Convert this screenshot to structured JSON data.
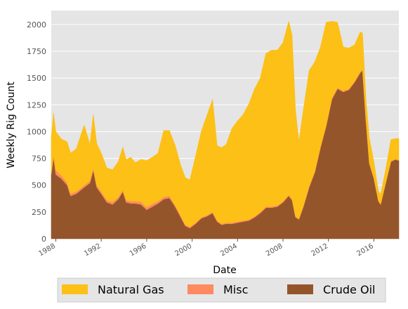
{
  "chart_data": {
    "type": "area",
    "stacked": true,
    "xlabel": "Date",
    "ylabel": "Weekly Rig Count",
    "xlim": [
      1987.6,
      2018.2
    ],
    "ylim": [
      0,
      2130
    ],
    "x_ticks": [
      {
        "value": 1988,
        "label": "1988"
      },
      {
        "value": 1992,
        "label": "1992"
      },
      {
        "value": 1996,
        "label": "1996"
      },
      {
        "value": 2000,
        "label": "2000"
      },
      {
        "value": 2004,
        "label": "2004"
      },
      {
        "value": 2008,
        "label": "2008"
      },
      {
        "value": 2012,
        "label": "2012"
      },
      {
        "value": 2016,
        "label": "2016"
      }
    ],
    "y_ticks": [
      {
        "value": 0,
        "label": "0"
      },
      {
        "value": 250,
        "label": "250"
      },
      {
        "value": 500,
        "label": "500"
      },
      {
        "value": 750,
        "label": "750"
      },
      {
        "value": 1000,
        "label": "1000"
      },
      {
        "value": 1250,
        "label": "1250"
      },
      {
        "value": 1500,
        "label": "1500"
      },
      {
        "value": 1750,
        "label": "1750"
      },
      {
        "value": 2000,
        "label": "2000"
      }
    ],
    "grid": true,
    "background": "#e5e5e5",
    "legend_position": "bottom",
    "series": [
      {
        "name": "Crude Oil",
        "color": "#95552b",
        "points": [
          [
            1987.6,
            600
          ],
          [
            1987.8,
            760
          ],
          [
            1988.0,
            600
          ],
          [
            1988.5,
            560
          ],
          [
            1989.0,
            500
          ],
          [
            1989.3,
            400
          ],
          [
            1989.8,
            420
          ],
          [
            1990.5,
            480
          ],
          [
            1991.0,
            520
          ],
          [
            1991.3,
            640
          ],
          [
            1991.6,
            480
          ],
          [
            1992.0,
            420
          ],
          [
            1992.5,
            340
          ],
          [
            1993.0,
            320
          ],
          [
            1993.5,
            370
          ],
          [
            1993.9,
            440
          ],
          [
            1994.2,
            340
          ],
          [
            1994.6,
            330
          ],
          [
            1995.0,
            330
          ],
          [
            1995.5,
            320
          ],
          [
            1996.0,
            270
          ],
          [
            1996.5,
            300
          ],
          [
            1997.0,
            330
          ],
          [
            1997.5,
            370
          ],
          [
            1998.0,
            380
          ],
          [
            1998.5,
            300
          ],
          [
            1999.0,
            200
          ],
          [
            1999.4,
            120
          ],
          [
            1999.8,
            100
          ],
          [
            2000.3,
            140
          ],
          [
            2000.8,
            190
          ],
          [
            2001.3,
            210
          ],
          [
            2001.8,
            240
          ],
          [
            2002.2,
            160
          ],
          [
            2002.6,
            130
          ],
          [
            2003.0,
            140
          ],
          [
            2003.5,
            140
          ],
          [
            2004.0,
            150
          ],
          [
            2004.5,
            160
          ],
          [
            2005.0,
            170
          ],
          [
            2005.5,
            200
          ],
          [
            2006.0,
            240
          ],
          [
            2006.5,
            290
          ],
          [
            2007.0,
            290
          ],
          [
            2007.5,
            300
          ],
          [
            2008.0,
            340
          ],
          [
            2008.5,
            400
          ],
          [
            2008.8,
            360
          ],
          [
            2009.1,
            200
          ],
          [
            2009.4,
            180
          ],
          [
            2009.8,
            300
          ],
          [
            2010.3,
            480
          ],
          [
            2010.8,
            620
          ],
          [
            2011.3,
            850
          ],
          [
            2011.8,
            1050
          ],
          [
            2012.3,
            1300
          ],
          [
            2012.8,
            1400
          ],
          [
            2013.3,
            1370
          ],
          [
            2013.8,
            1390
          ],
          [
            2014.3,
            1460
          ],
          [
            2014.8,
            1550
          ],
          [
            2015.0,
            1570
          ],
          [
            2015.3,
            1100
          ],
          [
            2015.6,
            700
          ],
          [
            2016.0,
            560
          ],
          [
            2016.4,
            350
          ],
          [
            2016.6,
            320
          ],
          [
            2017.0,
            500
          ],
          [
            2017.5,
            720
          ],
          [
            2017.9,
            740
          ],
          [
            2018.2,
            730
          ]
        ]
      },
      {
        "name": "Misc",
        "color": "#fe8a60",
        "points": [
          [
            1987.6,
            25
          ],
          [
            1987.8,
            25
          ],
          [
            1988.0,
            40
          ],
          [
            1988.5,
            30
          ],
          [
            1989.0,
            25
          ],
          [
            1989.3,
            20
          ],
          [
            1989.8,
            20
          ],
          [
            1990.5,
            20
          ],
          [
            1991.0,
            20
          ],
          [
            1991.3,
            20
          ],
          [
            1991.6,
            20
          ],
          [
            1992.0,
            20
          ],
          [
            1992.5,
            20
          ],
          [
            1993.0,
            25
          ],
          [
            1993.5,
            20
          ],
          [
            1993.9,
            15
          ],
          [
            1994.2,
            20
          ],
          [
            1994.6,
            20
          ],
          [
            1995.0,
            20
          ],
          [
            1995.5,
            25
          ],
          [
            1996.0,
            25
          ],
          [
            1996.5,
            25
          ],
          [
            1997.0,
            20
          ],
          [
            1997.5,
            20
          ],
          [
            1998.0,
            20
          ],
          [
            1998.5,
            15
          ],
          [
            1999.0,
            15
          ],
          [
            1999.4,
            10
          ],
          [
            1999.8,
            10
          ],
          [
            2000.3,
            10
          ],
          [
            2000.8,
            10
          ],
          [
            2001.3,
            10
          ],
          [
            2001.8,
            10
          ],
          [
            2002.2,
            10
          ],
          [
            2002.6,
            10
          ],
          [
            2003.0,
            10
          ],
          [
            2003.5,
            10
          ],
          [
            2004.0,
            10
          ],
          [
            2004.5,
            10
          ],
          [
            2005.0,
            10
          ],
          [
            2005.5,
            10
          ],
          [
            2006.0,
            10
          ],
          [
            2006.5,
            10
          ],
          [
            2007.0,
            10
          ],
          [
            2007.5,
            10
          ],
          [
            2008.0,
            10
          ],
          [
            2008.5,
            10
          ],
          [
            2008.8,
            10
          ],
          [
            2009.1,
            10
          ],
          [
            2009.4,
            10
          ],
          [
            2009.8,
            10
          ],
          [
            2010.3,
            10
          ],
          [
            2010.8,
            10
          ],
          [
            2011.3,
            10
          ],
          [
            2011.8,
            10
          ],
          [
            2012.3,
            10
          ],
          [
            2012.8,
            10
          ],
          [
            2013.3,
            10
          ],
          [
            2013.8,
            10
          ],
          [
            2014.3,
            10
          ],
          [
            2014.8,
            10
          ],
          [
            2015.0,
            10
          ],
          [
            2015.3,
            10
          ],
          [
            2015.6,
            10
          ],
          [
            2016.0,
            10
          ],
          [
            2016.4,
            5
          ],
          [
            2016.6,
            5
          ],
          [
            2017.0,
            5
          ],
          [
            2017.5,
            5
          ],
          [
            2017.9,
            5
          ],
          [
            2018.2,
            5
          ]
        ]
      },
      {
        "name": "Natural Gas",
        "color": "#fcc016",
        "points": [
          [
            1987.6,
            320
          ],
          [
            1987.8,
            390
          ],
          [
            1988.0,
            360
          ],
          [
            1988.5,
            340
          ],
          [
            1989.0,
            380
          ],
          [
            1989.3,
            380
          ],
          [
            1989.8,
            400
          ],
          [
            1990.5,
            560
          ],
          [
            1991.0,
            340
          ],
          [
            1991.3,
            500
          ],
          [
            1991.6,
            390
          ],
          [
            1992.0,
            360
          ],
          [
            1992.5,
            300
          ],
          [
            1993.0,
            300
          ],
          [
            1993.5,
            330
          ],
          [
            1993.9,
            400
          ],
          [
            1994.2,
            380
          ],
          [
            1994.6,
            410
          ],
          [
            1995.0,
            360
          ],
          [
            1995.5,
            395
          ],
          [
            1996.0,
            435
          ],
          [
            1996.5,
            435
          ],
          [
            1997.0,
            450
          ],
          [
            1997.5,
            620
          ],
          [
            1998.0,
            610
          ],
          [
            1998.5,
            560
          ],
          [
            1999.0,
            470
          ],
          [
            1999.4,
            440
          ],
          [
            1999.8,
            440
          ],
          [
            2000.3,
            620
          ],
          [
            2000.8,
            800
          ],
          [
            2001.3,
            930
          ],
          [
            2001.8,
            1050
          ],
          [
            2002.2,
            700
          ],
          [
            2002.6,
            710
          ],
          [
            2003.0,
            730
          ],
          [
            2003.5,
            880
          ],
          [
            2004.0,
            940
          ],
          [
            2004.5,
            990
          ],
          [
            2005.0,
            1080
          ],
          [
            2005.5,
            1190
          ],
          [
            2006.0,
            1250
          ],
          [
            2006.5,
            1430
          ],
          [
            2007.0,
            1460
          ],
          [
            2007.5,
            1450
          ],
          [
            2008.0,
            1480
          ],
          [
            2008.5,
            1620
          ],
          [
            2008.8,
            1530
          ],
          [
            2009.1,
            990
          ],
          [
            2009.4,
            720
          ],
          [
            2009.8,
            900
          ],
          [
            2010.3,
            1080
          ],
          [
            2010.8,
            1020
          ],
          [
            2011.3,
            930
          ],
          [
            2011.8,
            960
          ],
          [
            2012.3,
            720
          ],
          [
            2012.8,
            610
          ],
          [
            2013.3,
            410
          ],
          [
            2013.8,
            380
          ],
          [
            2014.3,
            340
          ],
          [
            2014.8,
            370
          ],
          [
            2015.0,
            340
          ],
          [
            2015.3,
            200
          ],
          [
            2015.6,
            230
          ],
          [
            2016.0,
            150
          ],
          [
            2016.4,
            90
          ],
          [
            2016.6,
            90
          ],
          [
            2017.0,
            120
          ],
          [
            2017.5,
            200
          ],
          [
            2017.9,
            190
          ],
          [
            2018.2,
            200
          ]
        ]
      }
    ]
  }
}
